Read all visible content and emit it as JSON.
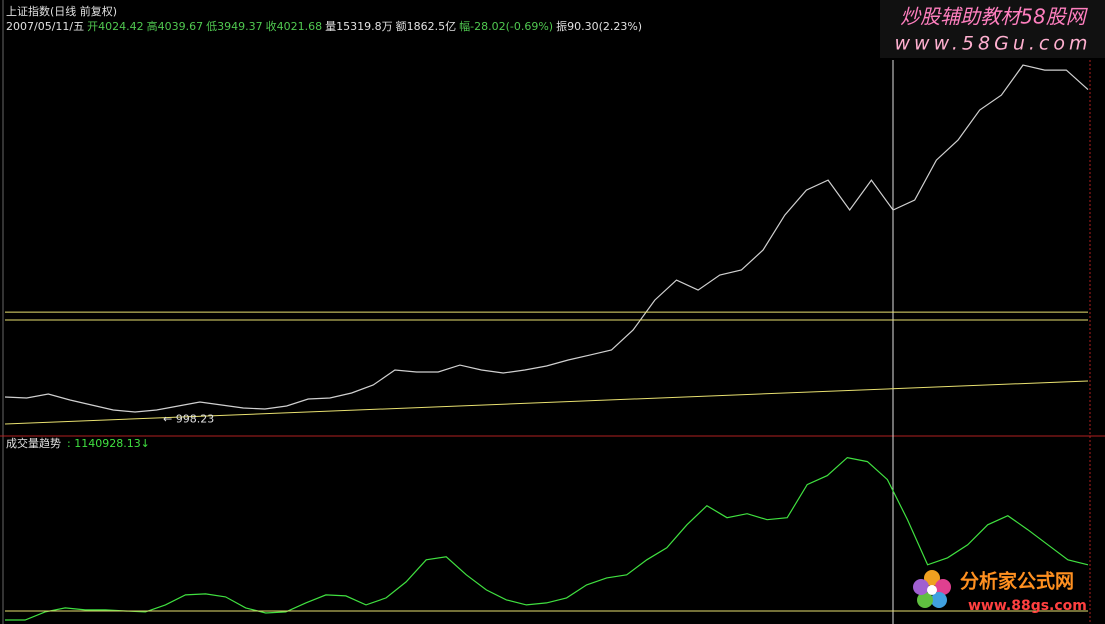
{
  "header": {
    "title": "上证指数(日线 前复权)",
    "quote": [
      {
        "text": "2007/05/11/五",
        "color": "#e0e0e0"
      },
      {
        "text": "开4024.42",
        "color": "#50c850"
      },
      {
        "text": "高4039.67",
        "color": "#50c850"
      },
      {
        "text": "低3949.37",
        "color": "#50c850"
      },
      {
        "text": "收4021.68",
        "color": "#50c850"
      },
      {
        "text": "量15319.8万",
        "color": "#e0e0e0"
      },
      {
        "text": "额1862.5亿",
        "color": "#e0e0e0"
      },
      {
        "text": "幅-28.02(-0.69%)",
        "color": "#50c850"
      },
      {
        "text": "振90.30(2.23%)",
        "color": "#e0e0e0"
      }
    ]
  },
  "price_panel": {
    "type": "line",
    "ylim": [
      900,
      4400
    ],
    "color": "#d0d0d0",
    "values": [
      1161,
      1151,
      1189,
      1133,
      1086,
      1040,
      1021,
      1040,
      1077,
      1114,
      1086,
      1058,
      1049,
      1077,
      1142,
      1151,
      1198,
      1272,
      1412,
      1393,
      1393,
      1458,
      1412,
      1384,
      1412,
      1449,
      1505,
      1551,
      1598,
      1784,
      2063,
      2249,
      2156,
      2296,
      2343,
      2529,
      2854,
      3087,
      3180,
      2901,
      3180,
      2901,
      2994,
      3366,
      3552,
      3832,
      3971,
      4250,
      4204,
      4204,
      4021.68
    ],
    "levels": [
      1951,
      1877
    ],
    "level_color": "#e8e070",
    "trendline": [
      909,
      1310
    ],
    "low_label": "← 998.23",
    "low_value": 998.23
  },
  "volume_panel": {
    "type": "line",
    "name": "成交量趋势",
    "value_label": ": 1140928.13↓",
    "ylim": [
      0,
      3200000
    ],
    "color": "#40e040",
    "baseline": 380000,
    "values": [
      231000,
      231000,
      364000,
      430000,
      397000,
      397000,
      380000,
      364000,
      480000,
      645000,
      661000,
      612000,
      430000,
      347000,
      364000,
      513000,
      645000,
      628000,
      480000,
      595000,
      860000,
      1224000,
      1273000,
      976000,
      728000,
      562000,
      480000,
      513000,
      595000,
      810000,
      926000,
      976000,
      1224000,
      1422000,
      1802000,
      2116000,
      1918000,
      1984000,
      1885000,
      1918000,
      2464000,
      2613000,
      2910000,
      2844000,
      2546000,
      1885000,
      1141000,
      1257000,
      1472000,
      1802000,
      1951000,
      1720000,
      1472000,
      1224000,
      1140928.13
    ]
  },
  "watermarks": {
    "top_title": "炒股辅助教材58股网",
    "top_url": "www.58Gu.com",
    "bottom_title": "分析家公式网",
    "bottom_url": "www.88gs.com"
  }
}
